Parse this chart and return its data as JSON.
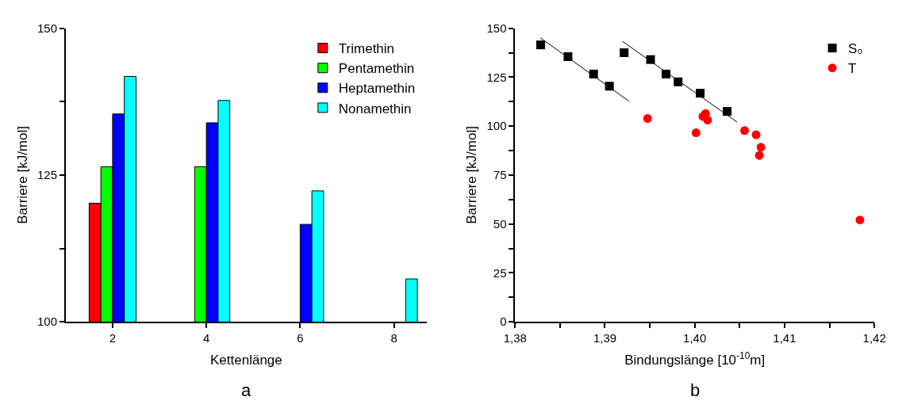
{
  "chart_data": [
    {
      "type": "bar",
      "xlabel": "Kettenlänge",
      "ylabel": "Barriere [kJ/mol]",
      "annotations": [
        "a"
      ],
      "x": [
        2,
        4,
        6,
        8
      ],
      "series": [
        {
          "name": "Trimethin",
          "color": "#ff0000",
          "values": [
            120.2,
            null,
            null,
            null
          ]
        },
        {
          "name": "Pentamethin",
          "color": "#00ff00",
          "values": [
            126.4,
            126.4,
            null,
            null
          ]
        },
        {
          "name": "Heptamethin",
          "color": "#0000ff",
          "values": [
            135.4,
            133.9,
            116.6,
            null
          ]
        },
        {
          "name": "Nonamethin",
          "color": "#00ffff",
          "values": [
            141.8,
            137.7,
            122.3,
            107.3
          ]
        }
      ],
      "xlim": [
        1.0,
        8.7
      ],
      "xticks": [
        2,
        4,
        6,
        8
      ],
      "ylim": [
        100,
        150
      ],
      "yticks": [
        100,
        {
          "value": 112.5,
          "label": null
        },
        125,
        {
          "value": 137.5,
          "label": null
        },
        150
      ],
      "legend": "top right"
    },
    {
      "type": "scatter",
      "xlabel": "Bindungslänge [10$^{-10}$m]",
      "ylabel": "Barriere [kJ/mol]",
      "annotations": [
        "b"
      ],
      "series": [
        {
          "name": "S₀",
          "color": "#000000",
          "marker": "square",
          "x": [
            1.38285,
            1.38589,
            1.38874,
            1.3905,
            1.39214,
            1.39508,
            1.39681,
            1.39815,
            1.40061,
            1.40361
          ],
          "values": [
            141.5,
            135.5,
            126.6,
            120.4,
            137.5,
            134.0,
            126.6,
            122.6,
            116.8,
            107.5
          ]
        },
        {
          "name": "T",
          "color": "#ff0000",
          "marker": "circle",
          "x": [
            1.39475,
            1.40015,
            1.40091,
            1.40121,
            1.40143,
            1.40555,
            1.40683,
            1.40737,
            1.40719,
            1.41839
          ],
          "values": [
            103.9,
            96.6,
            104.9,
            106.4,
            103.1,
            97.7,
            95.6,
            89.2,
            85.0,
            52.0
          ]
        },
        {
          "type": "line",
          "color": "#000000",
          "marker": "none",
          "x": [
            1.38279,
            1.39266
          ],
          "values": [
            145.2,
            112.8
          ]
        },
        {
          "type": "line",
          "color": "#000000",
          "marker": "none",
          "x": [
            1.39196,
            1.4047
          ],
          "values": [
            143.3,
            102.1
          ]
        }
      ],
      "xlim": [
        1.38,
        1.42
      ],
      "xticks": [
        {
          "value": 1.38,
          "label": "1,38"
        },
        {
          "value": 1.385,
          "label": null
        },
        {
          "value": 1.39,
          "label": "1,39"
        },
        {
          "value": 1.395,
          "label": null
        },
        {
          "value": 1.4,
          "label": "1,40"
        },
        {
          "value": 1.405,
          "label": null
        },
        {
          "value": 1.41,
          "label": "1,41"
        },
        {
          "value": 1.415,
          "label": null
        },
        {
          "value": 1.42,
          "label": "1,42"
        }
      ],
      "ylim": [
        0,
        150
      ],
      "yticks": [
        0,
        {
          "value": 12.5,
          "label": null
        },
        25,
        {
          "value": 37.5,
          "label": null
        },
        50,
        {
          "value": 62.5,
          "label": null
        },
        75,
        {
          "value": 87.5,
          "label": null
        },
        100,
        {
          "value": 112.5,
          "label": null
        },
        125,
        {
          "value": 137.5,
          "label": null
        },
        150
      ],
      "legend": "top right"
    }
  ]
}
